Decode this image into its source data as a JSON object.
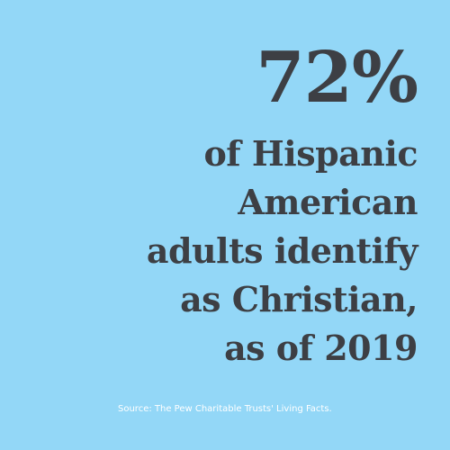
{
  "headline": {
    "statistic": "72%",
    "lines": [
      "of Hispanic",
      "American",
      "adults identify",
      "as Christian,",
      "as of 2019"
    ]
  },
  "footer": {
    "source": "Source: The Pew Charitable Trusts' Living Facts."
  },
  "colors": {
    "background": "#93d7f7",
    "text": "#3d3f44",
    "source_text": "#ffffff"
  }
}
